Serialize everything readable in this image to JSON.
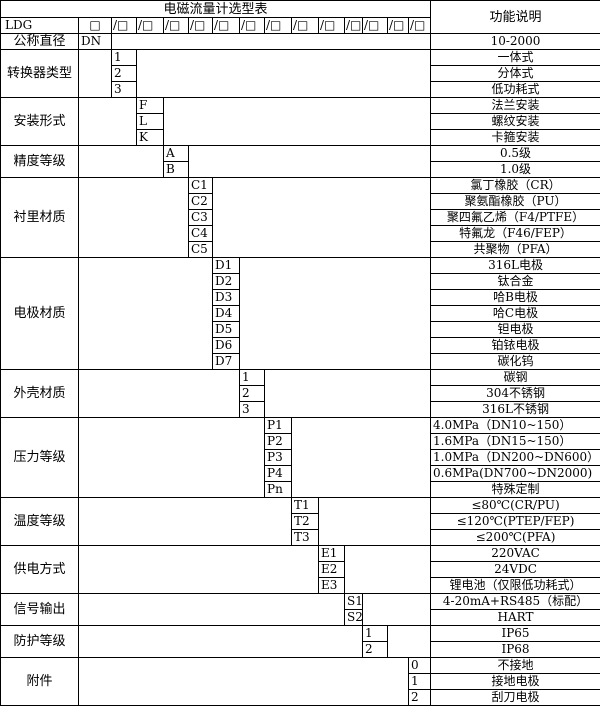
{
  "title": "电磁流量计选型表",
  "function_header": "功能说明",
  "model_row": {
    "prefix": "LDG",
    "first_box": "□",
    "boxes": [
      "/□",
      "/□",
      "/□",
      "/□",
      "/□",
      "/□",
      "/□",
      "/□",
      "/□",
      "/□",
      "/□",
      "/□",
      "/□"
    ]
  },
  "nominal": {
    "label": "公称直径",
    "code": "DN",
    "desc": "10-2000"
  },
  "groups": [
    {
      "label": "转换器类型",
      "col": 1,
      "items": [
        {
          "code": "1",
          "desc": "一体式"
        },
        {
          "code": "2",
          "desc": "分体式"
        },
        {
          "code": "3",
          "desc": "低功耗式"
        }
      ]
    },
    {
      "label": "安装形式",
      "col": 2,
      "items": [
        {
          "code": "F",
          "desc": "法兰安装"
        },
        {
          "code": "L",
          "desc": "螺纹安装"
        },
        {
          "code": "K",
          "desc": "卡箍安装"
        }
      ]
    },
    {
      "label": "精度等级",
      "col": 3,
      "items": [
        {
          "code": "A",
          "desc": "0.5级"
        },
        {
          "code": "B",
          "desc": "1.0级"
        }
      ]
    },
    {
      "label": "衬里材质",
      "col": 4,
      "items": [
        {
          "code": "C1",
          "desc": "氯丁橡胶（CR）"
        },
        {
          "code": "C2",
          "desc": "聚氨酯橡胶（PU）"
        },
        {
          "code": "C3",
          "desc": "聚四氟乙烯（F4/PTFE）"
        },
        {
          "code": "C4",
          "desc": "特氟龙（F46/FEP）"
        },
        {
          "code": "C5",
          "desc": "共聚物（PFA）"
        }
      ]
    },
    {
      "label": "电极材质",
      "col": 5,
      "items": [
        {
          "code": "D1",
          "desc": "316L电极"
        },
        {
          "code": "D2",
          "desc": "钛合金"
        },
        {
          "code": "D3",
          "desc": "哈B电极"
        },
        {
          "code": "D4",
          "desc": "哈C电极"
        },
        {
          "code": "D5",
          "desc": "钽电极"
        },
        {
          "code": "D6",
          "desc": "铂铱电极"
        },
        {
          "code": "D7",
          "desc": "碳化钨"
        }
      ]
    },
    {
      "label": "外壳材质",
      "col": 6,
      "items": [
        {
          "code": "1",
          "desc": "碳钢"
        },
        {
          "code": "2",
          "desc": "304不锈钢"
        },
        {
          "code": "3",
          "desc": "316L不锈钢"
        }
      ]
    },
    {
      "label": "压力等级",
      "col": 7,
      "items": [
        {
          "code": "P1",
          "desc": "4.0MPa（DN10~150）",
          "align": "left"
        },
        {
          "code": "P2",
          "desc": "1.6MPa（DN15~150）",
          "align": "left"
        },
        {
          "code": "P3",
          "desc": "1.0MPa（DN200~DN600）",
          "align": "left"
        },
        {
          "code": "P4",
          "desc": "0.6MPa(DN700~DN2000)",
          "align": "left"
        },
        {
          "code": "Pn",
          "desc": "特殊定制"
        }
      ]
    },
    {
      "label": "温度等级",
      "col": 8,
      "items": [
        {
          "code": "T1",
          "desc": "≤80℃(CR/PU)"
        },
        {
          "code": "T2",
          "desc": "≤120℃(PTEP/FEP)"
        },
        {
          "code": "T3",
          "desc": "≤200℃(PFA)"
        }
      ]
    },
    {
      "label": "供电方式",
      "col": 9,
      "items": [
        {
          "code": "E1",
          "desc": "220VAC"
        },
        {
          "code": "E2",
          "desc": "24VDC"
        },
        {
          "code": "E3",
          "desc": "锂电池（仅限低功耗式）"
        }
      ]
    },
    {
      "label": "信号输出",
      "col": 10,
      "items": [
        {
          "code": "S1",
          "desc": "4-20mA+RS485（标配）"
        },
        {
          "code": "S2",
          "desc": "HART"
        }
      ]
    },
    {
      "label": "防护等级",
      "col": 11,
      "items": [
        {
          "code": "1",
          "desc": "IP65"
        },
        {
          "code": "2",
          "desc": "IP68"
        }
      ]
    },
    {
      "label": "附件",
      "col": 13,
      "items": [
        {
          "code": "0",
          "desc": "不接地"
        },
        {
          "code": "1",
          "desc": "接地电极"
        },
        {
          "code": "2",
          "desc": "刮刀电极"
        }
      ]
    }
  ]
}
